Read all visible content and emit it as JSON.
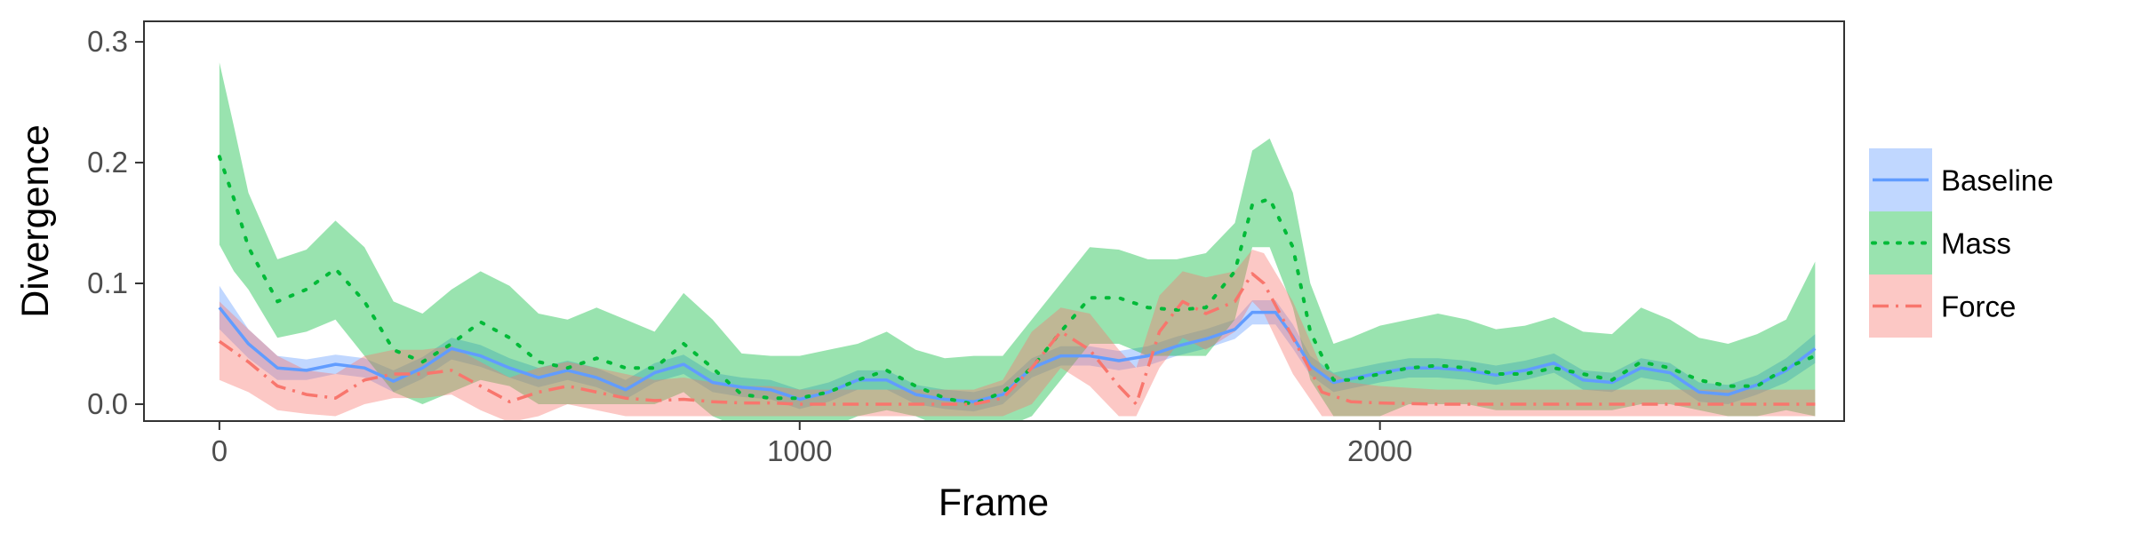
{
  "chart_data": {
    "type": "line",
    "xlabel": "Frame",
    "ylabel": "Divergence",
    "xlim": [
      -130,
      2800
    ],
    "ylim": [
      -0.014,
      0.317
    ],
    "x_ticks": [
      0,
      1000,
      2000
    ],
    "y_ticks": [
      0.0,
      0.1,
      0.2,
      0.3
    ],
    "x_tick_labels": [
      "0",
      "1000",
      "2000"
    ],
    "y_tick_labels": [
      "0.0",
      "0.1",
      "0.2",
      "0.3"
    ],
    "grid": false,
    "legend_position": "right",
    "legend_entries": [
      {
        "label": "Baseline",
        "color": "#619cff",
        "line_style": "solid"
      },
      {
        "label": "Mass",
        "color": "#00ba38",
        "line_style": "dotted"
      },
      {
        "label": "Force",
        "color": "#f8766d",
        "line_style": "dashdot"
      }
    ],
    "series": [
      {
        "name": "Baseline",
        "color": "#619cff",
        "fill_color": "#619cff",
        "dash": "",
        "points": [
          [
            0,
            0.08,
            0.062,
            0.098
          ],
          [
            50,
            0.05,
            0.038,
            0.062
          ],
          [
            100,
            0.03,
            0.02,
            0.04
          ],
          [
            150,
            0.028,
            0.02,
            0.037
          ],
          [
            200,
            0.033,
            0.025,
            0.041
          ],
          [
            250,
            0.03,
            0.022,
            0.038
          ],
          [
            300,
            0.019,
            0.01,
            0.028
          ],
          [
            350,
            0.03,
            0.021,
            0.039
          ],
          [
            400,
            0.046,
            0.037,
            0.055
          ],
          [
            450,
            0.04,
            0.031,
            0.049
          ],
          [
            500,
            0.03,
            0.022,
            0.038
          ],
          [
            550,
            0.022,
            0.014,
            0.03
          ],
          [
            600,
            0.028,
            0.02,
            0.036
          ],
          [
            650,
            0.022,
            0.014,
            0.03
          ],
          [
            700,
            0.012,
            0.004,
            0.02
          ],
          [
            750,
            0.026,
            0.018,
            0.034
          ],
          [
            800,
            0.033,
            0.025,
            0.041
          ],
          [
            850,
            0.018,
            0.01,
            0.026
          ],
          [
            900,
            0.014,
            0.006,
            0.022
          ],
          [
            950,
            0.012,
            0.004,
            0.02
          ],
          [
            1000,
            0.004,
            -0.004,
            0.012
          ],
          [
            1050,
            0.01,
            0.002,
            0.018
          ],
          [
            1100,
            0.02,
            0.012,
            0.028
          ],
          [
            1150,
            0.02,
            0.012,
            0.028
          ],
          [
            1200,
            0.008,
            0.0,
            0.016
          ],
          [
            1250,
            0.004,
            -0.004,
            0.012
          ],
          [
            1300,
            0.002,
            -0.006,
            0.01
          ],
          [
            1350,
            0.008,
            0.0,
            0.016
          ],
          [
            1400,
            0.03,
            0.022,
            0.038
          ],
          [
            1450,
            0.04,
            0.032,
            0.048
          ],
          [
            1500,
            0.04,
            0.032,
            0.048
          ],
          [
            1550,
            0.036,
            0.028,
            0.044
          ],
          [
            1600,
            0.04,
            0.032,
            0.048
          ],
          [
            1650,
            0.048,
            0.04,
            0.056
          ],
          [
            1700,
            0.054,
            0.046,
            0.062
          ],
          [
            1750,
            0.062,
            0.054,
            0.07
          ],
          [
            1780,
            0.076,
            0.066,
            0.086
          ],
          [
            1820,
            0.076,
            0.066,
            0.086
          ],
          [
            1850,
            0.056,
            0.046,
            0.066
          ],
          [
            1880,
            0.032,
            0.024,
            0.04
          ],
          [
            1920,
            0.018,
            0.01,
            0.026
          ],
          [
            2000,
            0.026,
            0.018,
            0.034
          ],
          [
            2050,
            0.03,
            0.022,
            0.038
          ],
          [
            2100,
            0.03,
            0.022,
            0.038
          ],
          [
            2150,
            0.028,
            0.02,
            0.036
          ],
          [
            2200,
            0.024,
            0.016,
            0.032
          ],
          [
            2250,
            0.028,
            0.02,
            0.036
          ],
          [
            2300,
            0.034,
            0.026,
            0.042
          ],
          [
            2350,
            0.02,
            0.012,
            0.028
          ],
          [
            2400,
            0.018,
            0.01,
            0.026
          ],
          [
            2450,
            0.03,
            0.022,
            0.038
          ],
          [
            2500,
            0.026,
            0.018,
            0.034
          ],
          [
            2550,
            0.01,
            0.002,
            0.018
          ],
          [
            2600,
            0.008,
            0.0,
            0.016
          ],
          [
            2650,
            0.016,
            0.008,
            0.024
          ],
          [
            2700,
            0.028,
            0.018,
            0.038
          ],
          [
            2750,
            0.046,
            0.034,
            0.058
          ]
        ]
      },
      {
        "name": "Mass",
        "color": "#00ba38",
        "fill_color": "#00ba38",
        "dash": "3 13",
        "points": [
          [
            0,
            0.205,
            0.132,
            0.283
          ],
          [
            25,
            0.17,
            0.11,
            0.23
          ],
          [
            50,
            0.13,
            0.095,
            0.175
          ],
          [
            100,
            0.085,
            0.055,
            0.12
          ],
          [
            150,
            0.095,
            0.06,
            0.128
          ],
          [
            200,
            0.112,
            0.07,
            0.152
          ],
          [
            250,
            0.085,
            0.04,
            0.13
          ],
          [
            300,
            0.045,
            0.01,
            0.085
          ],
          [
            350,
            0.035,
            0.0,
            0.075
          ],
          [
            400,
            0.05,
            0.01,
            0.095
          ],
          [
            450,
            0.068,
            0.02,
            0.11
          ],
          [
            500,
            0.055,
            0.015,
            0.098
          ],
          [
            550,
            0.035,
            0.0,
            0.075
          ],
          [
            600,
            0.03,
            0.0,
            0.07
          ],
          [
            650,
            0.038,
            0.0,
            0.08
          ],
          [
            700,
            0.03,
            0.0,
            0.07
          ],
          [
            750,
            0.03,
            0.0,
            0.06
          ],
          [
            800,
            0.05,
            0.01,
            0.092
          ],
          [
            850,
            0.03,
            -0.01,
            0.07
          ],
          [
            900,
            0.008,
            -0.02,
            0.042
          ],
          [
            950,
            0.005,
            -0.02,
            0.04
          ],
          [
            1000,
            0.005,
            -0.02,
            0.04
          ],
          [
            1050,
            0.01,
            -0.02,
            0.045
          ],
          [
            1100,
            0.02,
            -0.01,
            0.05
          ],
          [
            1150,
            0.028,
            -0.005,
            0.06
          ],
          [
            1200,
            0.015,
            -0.01,
            0.045
          ],
          [
            1250,
            0.005,
            -0.02,
            0.038
          ],
          [
            1300,
            0.0,
            -0.02,
            0.04
          ],
          [
            1350,
            0.01,
            -0.02,
            0.04
          ],
          [
            1400,
            0.03,
            -0.01,
            0.07
          ],
          [
            1450,
            0.06,
            0.02,
            0.1
          ],
          [
            1500,
            0.088,
            0.05,
            0.13
          ],
          [
            1550,
            0.088,
            0.05,
            0.128
          ],
          [
            1600,
            0.08,
            0.04,
            0.12
          ],
          [
            1650,
            0.078,
            0.04,
            0.12
          ],
          [
            1700,
            0.08,
            0.04,
            0.125
          ],
          [
            1750,
            0.11,
            0.07,
            0.15
          ],
          [
            1780,
            0.165,
            0.13,
            0.21
          ],
          [
            1810,
            0.17,
            0.13,
            0.22
          ],
          [
            1850,
            0.13,
            0.08,
            0.175
          ],
          [
            1880,
            0.06,
            0.02,
            0.1
          ],
          [
            1920,
            0.02,
            -0.01,
            0.05
          ],
          [
            1950,
            0.02,
            -0.01,
            0.055
          ],
          [
            2000,
            0.025,
            -0.01,
            0.065
          ],
          [
            2050,
            0.03,
            0.0,
            0.07
          ],
          [
            2100,
            0.032,
            0.0,
            0.075
          ],
          [
            2150,
            0.03,
            0.0,
            0.07
          ],
          [
            2200,
            0.025,
            -0.005,
            0.062
          ],
          [
            2250,
            0.025,
            -0.005,
            0.065
          ],
          [
            2300,
            0.03,
            -0.005,
            0.072
          ],
          [
            2350,
            0.025,
            -0.005,
            0.06
          ],
          [
            2400,
            0.02,
            -0.005,
            0.058
          ],
          [
            2450,
            0.035,
            0.0,
            0.08
          ],
          [
            2500,
            0.03,
            0.0,
            0.07
          ],
          [
            2550,
            0.02,
            -0.005,
            0.055
          ],
          [
            2600,
            0.015,
            -0.01,
            0.05
          ],
          [
            2650,
            0.015,
            -0.01,
            0.058
          ],
          [
            2700,
            0.03,
            -0.005,
            0.07
          ],
          [
            2750,
            0.04,
            -0.01,
            0.118
          ]
        ]
      },
      {
        "name": "Force",
        "color": "#f8766d",
        "fill_color": "#f8766d",
        "dash": "18 8 3 8",
        "points": [
          [
            0,
            0.052,
            0.02,
            0.085
          ],
          [
            50,
            0.035,
            0.01,
            0.062
          ],
          [
            100,
            0.015,
            -0.005,
            0.04
          ],
          [
            150,
            0.008,
            -0.008,
            0.028
          ],
          [
            200,
            0.005,
            -0.01,
            0.025
          ],
          [
            250,
            0.02,
            0.0,
            0.04
          ],
          [
            300,
            0.025,
            0.005,
            0.045
          ],
          [
            350,
            0.025,
            0.005,
            0.045
          ],
          [
            400,
            0.028,
            0.008,
            0.048
          ],
          [
            450,
            0.015,
            -0.005,
            0.035
          ],
          [
            500,
            0.002,
            -0.015,
            0.022
          ],
          [
            550,
            0.01,
            -0.01,
            0.03
          ],
          [
            600,
            0.015,
            0.0,
            0.035
          ],
          [
            650,
            0.01,
            -0.005,
            0.03
          ],
          [
            700,
            0.005,
            -0.01,
            0.025
          ],
          [
            750,
            0.003,
            -0.01,
            0.02
          ],
          [
            800,
            0.004,
            -0.01,
            0.022
          ],
          [
            850,
            0.002,
            -0.01,
            0.018
          ],
          [
            900,
            0.001,
            -0.01,
            0.015
          ],
          [
            950,
            0.001,
            -0.01,
            0.015
          ],
          [
            1000,
            0.0,
            -0.01,
            0.012
          ],
          [
            1050,
            0.0,
            -0.01,
            0.012
          ],
          [
            1100,
            0.0,
            -0.01,
            0.012
          ],
          [
            1150,
            0.0,
            -0.01,
            0.012
          ],
          [
            1200,
            0.0,
            -0.01,
            0.012
          ],
          [
            1250,
            0.0,
            -0.01,
            0.012
          ],
          [
            1300,
            0.0,
            -0.01,
            0.012
          ],
          [
            1350,
            0.005,
            -0.01,
            0.02
          ],
          [
            1400,
            0.03,
            0.0,
            0.06
          ],
          [
            1450,
            0.06,
            0.03,
            0.08
          ],
          [
            1500,
            0.045,
            0.015,
            0.075
          ],
          [
            1550,
            0.015,
            -0.01,
            0.045
          ],
          [
            1580,
            0.0,
            -0.01,
            0.03
          ],
          [
            1620,
            0.06,
            0.03,
            0.09
          ],
          [
            1660,
            0.085,
            0.055,
            0.11
          ],
          [
            1700,
            0.075,
            0.045,
            0.105
          ],
          [
            1750,
            0.085,
            0.06,
            0.11
          ],
          [
            1780,
            0.108,
            0.085,
            0.128
          ],
          [
            1800,
            0.1,
            0.075,
            0.125
          ],
          [
            1850,
            0.055,
            0.025,
            0.085
          ],
          [
            1900,
            0.01,
            -0.01,
            0.03
          ],
          [
            1950,
            0.002,
            -0.01,
            0.018
          ],
          [
            2000,
            0.001,
            -0.01,
            0.015
          ],
          [
            2100,
            0.0,
            -0.01,
            0.012
          ],
          [
            2200,
            0.0,
            -0.01,
            0.012
          ],
          [
            2300,
            0.0,
            -0.01,
            0.012
          ],
          [
            2400,
            0.0,
            -0.01,
            0.012
          ],
          [
            2500,
            0.0,
            -0.01,
            0.012
          ],
          [
            2600,
            0.0,
            -0.01,
            0.012
          ],
          [
            2700,
            0.0,
            -0.01,
            0.012
          ],
          [
            2750,
            0.0,
            -0.01,
            0.012
          ]
        ]
      }
    ]
  }
}
